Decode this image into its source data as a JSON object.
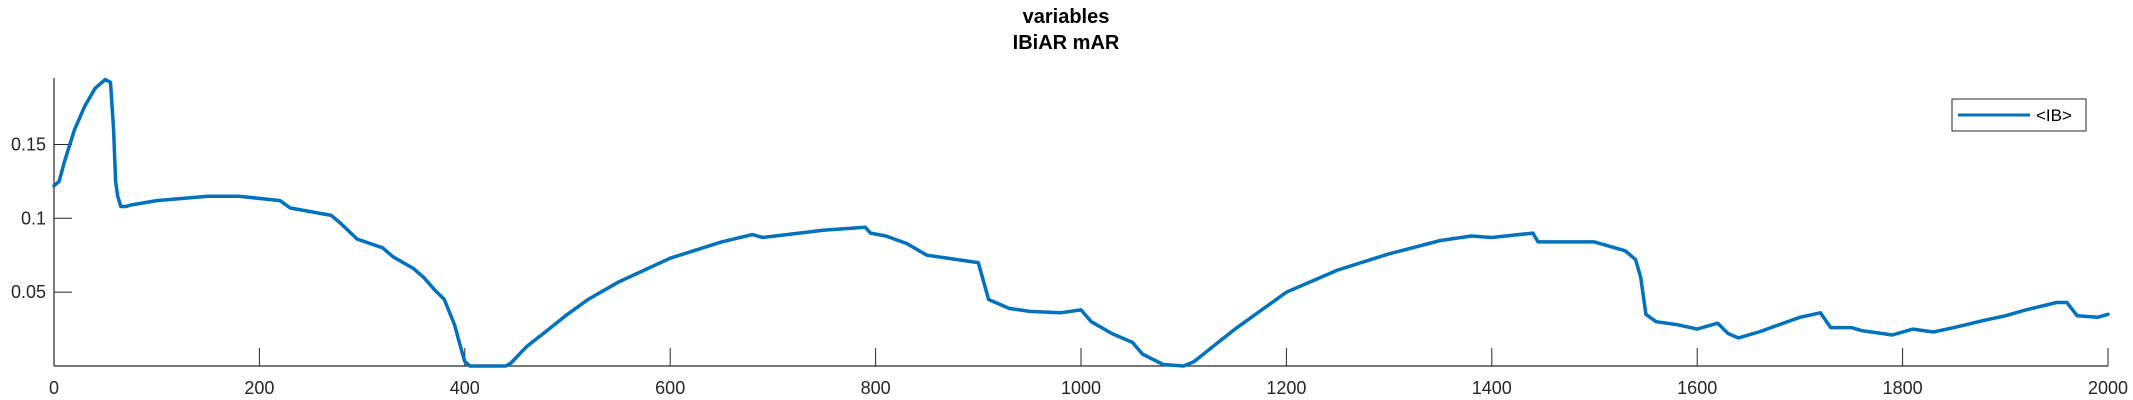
{
  "chart_data": {
    "type": "line",
    "title": "variables",
    "subtitle": "IBiAR mAR",
    "xlabel": "",
    "ylabel": "",
    "xlim": [
      0,
      2000
    ],
    "ylim": [
      0,
      0.195
    ],
    "xticks": [
      0,
      200,
      400,
      600,
      800,
      1000,
      1200,
      1400,
      1600,
      1800,
      2000
    ],
    "xtick_labels": [
      "0",
      "200",
      "400",
      "600",
      "800",
      "1000",
      "1200",
      "1400",
      "1600",
      "1800",
      "2000"
    ],
    "yticks": [
      0.05,
      0.1,
      0.15
    ],
    "ytick_labels": [
      "0.05",
      "0.1",
      "0.15"
    ],
    "grid": false,
    "legend_position": "top-right",
    "series": [
      {
        "name": "<IB>",
        "color": "#0072BD",
        "x": [
          0,
          5,
          10,
          20,
          30,
          40,
          50,
          55,
          58,
          60,
          62,
          65,
          70,
          75,
          100,
          150,
          180,
          220,
          230,
          270,
          280,
          295,
          320,
          330,
          350,
          360,
          370,
          380,
          390,
          395,
          400,
          405,
          410,
          420,
          440,
          445,
          460,
          480,
          500,
          520,
          550,
          600,
          650,
          680,
          690,
          750,
          790,
          795,
          810,
          830,
          850,
          900,
          910,
          930,
          950,
          980,
          1000,
          1010,
          1030,
          1050,
          1060,
          1080,
          1100,
          1110,
          1130,
          1150,
          1200,
          1250,
          1300,
          1350,
          1380,
          1400,
          1440,
          1445,
          1500,
          1510,
          1530,
          1540,
          1545,
          1550,
          1560,
          1580,
          1600,
          1620,
          1630,
          1640,
          1660,
          1700,
          1720,
          1730,
          1750,
          1760,
          1780,
          1790,
          1810,
          1830,
          1850,
          1880,
          1900,
          1920,
          1950,
          1960,
          1970,
          1990,
          2000
        ],
        "values": [
          0.122,
          0.125,
          0.138,
          0.16,
          0.176,
          0.188,
          0.194,
          0.192,
          0.16,
          0.125,
          0.115,
          0.108,
          0.108,
          0.109,
          0.112,
          0.115,
          0.115,
          0.112,
          0.107,
          0.102,
          0.096,
          0.086,
          0.08,
          0.074,
          0.066,
          0.06,
          0.052,
          0.045,
          0.028,
          0.015,
          0.003,
          0.0,
          0.0,
          0.0,
          0.0,
          0.002,
          0.013,
          0.024,
          0.035,
          0.045,
          0.057,
          0.073,
          0.084,
          0.089,
          0.087,
          0.092,
          0.094,
          0.09,
          0.088,
          0.083,
          0.075,
          0.07,
          0.045,
          0.039,
          0.037,
          0.036,
          0.038,
          0.03,
          0.022,
          0.016,
          0.008,
          0.001,
          0.0,
          0.003,
          0.014,
          0.025,
          0.05,
          0.065,
          0.076,
          0.085,
          0.088,
          0.087,
          0.09,
          0.084,
          0.084,
          0.082,
          0.078,
          0.072,
          0.06,
          0.035,
          0.03,
          0.028,
          0.025,
          0.029,
          0.022,
          0.019,
          0.023,
          0.033,
          0.036,
          0.026,
          0.026,
          0.024,
          0.022,
          0.021,
          0.025,
          0.023,
          0.026,
          0.031,
          0.034,
          0.038,
          0.043,
          0.043,
          0.034,
          0.033,
          0.035
        ]
      }
    ]
  }
}
